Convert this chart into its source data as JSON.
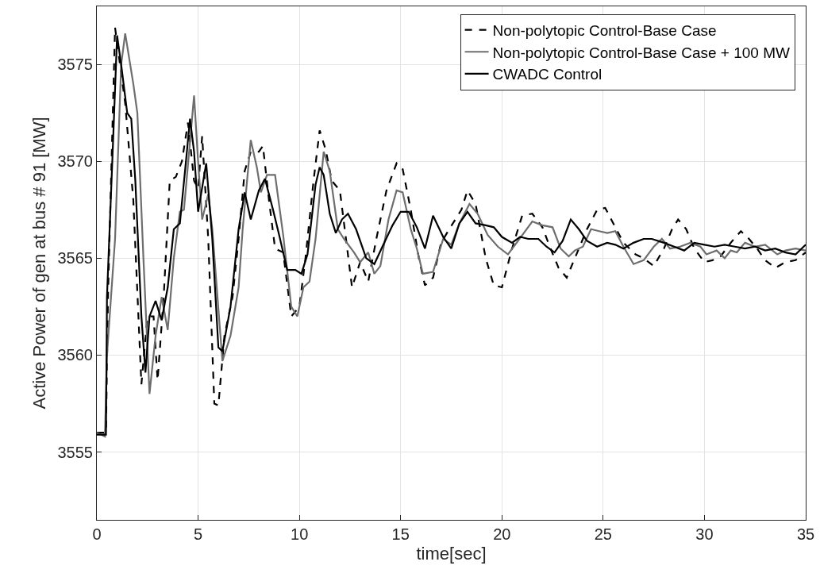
{
  "chart_data": {
    "type": "line",
    "xlabel": "time[sec]",
    "ylabel": "Active Power of gen at bus # 91 [MW]",
    "xlim": [
      0,
      35
    ],
    "xticks": [
      0,
      5,
      10,
      15,
      20,
      25,
      30,
      35
    ],
    "ylim": [
      3551.5,
      3578
    ],
    "yticks": [
      3555,
      3560,
      3565,
      3570,
      3575
    ],
    "grid": true,
    "legend": "top right",
    "series": [
      {
        "name": "Non-polytopic Control-Base Case",
        "color": "#000000",
        "line_style": "dashed",
        "x": [
          0,
          0.45,
          0.55,
          0.9,
          1.4,
          1.8,
          2.2,
          2.5,
          2.8,
          3.0,
          3.3,
          3.6,
          3.9,
          4.2,
          4.5,
          4.8,
          5.0,
          5.2,
          5.5,
          5.8,
          6.0,
          6.3,
          6.7,
          7.0,
          7.3,
          7.6,
          8.0,
          8.2,
          8.5,
          8.8,
          9.2,
          9.6,
          10.0,
          10.3,
          10.7,
          11.0,
          11.3,
          11.6,
          12.0,
          12.3,
          12.6,
          13.0,
          13.4,
          13.8,
          14.3,
          14.8,
          15.1,
          15.5,
          15.9,
          16.2,
          16.6,
          17.0,
          17.4,
          18.0,
          18.3,
          18.7,
          19.2,
          19.6,
          20.0,
          20.5,
          21.0,
          21.5,
          22.0,
          22.4,
          22.8,
          23.2,
          23.6,
          24.2,
          24.7,
          25.1,
          25.5,
          26.0,
          26.6,
          27.0,
          27.5,
          28.0,
          28.4,
          28.7,
          29.1,
          29.5,
          30.0,
          30.4,
          30.8,
          31.3,
          31.8,
          32.2,
          32.6,
          33.0,
          33.5,
          34.0,
          34.5,
          35
        ],
        "values": [
          3556,
          3556,
          3563,
          3576.9,
          3573,
          3568,
          3558.5,
          3562,
          3562,
          3558.7,
          3563,
          3569,
          3569.2,
          3570,
          3572,
          3569,
          3568.6,
          3571.3,
          3566,
          3557.5,
          3557.4,
          3561,
          3563,
          3566,
          3569.5,
          3570.5,
          3570.5,
          3570.8,
          3568,
          3565.5,
          3565.3,
          3562,
          3562.5,
          3565,
          3569,
          3571.6,
          3570.6,
          3569,
          3568.5,
          3566,
          3563.5,
          3564.8,
          3563.8,
          3566,
          3568.5,
          3569.9,
          3569.6,
          3567.5,
          3565,
          3563.6,
          3564,
          3565.8,
          3566.5,
          3567.5,
          3568.5,
          3567.8,
          3565,
          3563.6,
          3563.5,
          3565.5,
          3567.2,
          3567.3,
          3566.6,
          3565.5,
          3564.5,
          3564,
          3565,
          3566.5,
          3567.5,
          3567.6,
          3566.8,
          3565.8,
          3565.2,
          3565,
          3564.6,
          3565.5,
          3566.5,
          3567,
          3566.5,
          3565.5,
          3564.8,
          3564.9,
          3565.1,
          3565.8,
          3566.4,
          3566,
          3565.5,
          3564.9,
          3564.5,
          3564.8,
          3564.9,
          3565.3
        ]
      },
      {
        "name": "Non-polytopic Control-Base Case + 100 MW",
        "color": "#6e6e6e",
        "line_style": "solid",
        "x": [
          0,
          0.4,
          0.5,
          0.9,
          1.2,
          1.4,
          1.8,
          2.0,
          2.3,
          2.6,
          2.9,
          3.2,
          3.5,
          3.8,
          4.1,
          4.3,
          4.6,
          4.8,
          5.0,
          5.2,
          5.5,
          5.7,
          6.2,
          6.6,
          7.0,
          7.2,
          7.6,
          7.9,
          8.1,
          8.4,
          8.8,
          9.2,
          9.6,
          9.9,
          10.2,
          10.5,
          10.8,
          11.2,
          11.5,
          11.9,
          12.2,
          12.7,
          13.0,
          13.4,
          13.7,
          14.0,
          14.4,
          14.8,
          15.1,
          15.5,
          15.8,
          16.1,
          16.6,
          17.1,
          17.5,
          17.9,
          18.4,
          18.8,
          19.3,
          19.8,
          20.3,
          20.8,
          21.5,
          22.0,
          22.5,
          22.9,
          23.3,
          23.6,
          24.0,
          24.4,
          24.8,
          25.2,
          25.6,
          26.0,
          26.5,
          27.0,
          27.5,
          27.9,
          28.3,
          28.8,
          29.3,
          29.8,
          30.1,
          30.6,
          31.0,
          31.3,
          31.6,
          32.0,
          32.5,
          33.0,
          33.6,
          34.0,
          34.5,
          35
        ],
        "values": [
          3556,
          3555.8,
          3560,
          3566,
          3575,
          3576.6,
          3574,
          3572.5,
          3565,
          3558,
          3561,
          3563,
          3561.3,
          3565,
          3567.4,
          3567.5,
          3571,
          3573.4,
          3570,
          3567,
          3568.3,
          3566.5,
          3559.7,
          3561,
          3563.5,
          3566.5,
          3571.1,
          3569.7,
          3568.4,
          3569.3,
          3569.3,
          3566.2,
          3562.5,
          3562,
          3563.5,
          3563.8,
          3566,
          3570.5,
          3569.5,
          3566.5,
          3566,
          3565.3,
          3564.8,
          3565.3,
          3564.2,
          3564.6,
          3567,
          3568.5,
          3568.4,
          3566.5,
          3565.5,
          3564.2,
          3564.3,
          3566,
          3565.7,
          3566.8,
          3567.8,
          3567.3,
          3566.2,
          3565.6,
          3565.2,
          3565.9,
          3566.9,
          3566.7,
          3566.6,
          3565.5,
          3565.1,
          3565.4,
          3565.6,
          3566.5,
          3566.4,
          3566.3,
          3566.4,
          3565.6,
          3564.7,
          3564.9,
          3565.6,
          3566,
          3565.5,
          3565.6,
          3565.8,
          3565.6,
          3565.2,
          3565.4,
          3565,
          3565.4,
          3565.3,
          3565.8,
          3565.6,
          3565.7,
          3565.2,
          3565.4,
          3565.5,
          3565.4
        ]
      },
      {
        "name": "CWADC Control",
        "color": "#000000",
        "line_style": "solid",
        "x": [
          0,
          0.45,
          0.5,
          0.8,
          1.0,
          1.2,
          1.5,
          1.7,
          1.9,
          2.2,
          2.4,
          2.6,
          2.9,
          3.2,
          3.5,
          3.8,
          4.1,
          4.4,
          4.6,
          4.8,
          5.0,
          5.4,
          5.7,
          6.0,
          6.2,
          6.6,
          7.0,
          7.3,
          7.6,
          8.0,
          8.3,
          8.7,
          9.0,
          9.4,
          9.8,
          10.1,
          10.4,
          10.8,
          11.0,
          11.2,
          11.5,
          11.8,
          12.1,
          12.4,
          12.8,
          13.3,
          13.7,
          14.1,
          14.6,
          15.0,
          15.4,
          15.8,
          16.2,
          16.6,
          17.1,
          17.5,
          17.9,
          18.3,
          18.7,
          19.2,
          19.6,
          20.0,
          20.5,
          20.9,
          21.3,
          21.8,
          22.2,
          22.6,
          23.0,
          23.4,
          23.8,
          24.2,
          24.7,
          25.2,
          25.6,
          26.0,
          26.5,
          27.0,
          27.4,
          28.0,
          28.5,
          29.0,
          29.5,
          30.0,
          30.5,
          31.0,
          31.5,
          32.0,
          32.5,
          33.0,
          33.5,
          34.0,
          34.5,
          35
        ],
        "values": [
          3555.9,
          3555.9,
          3563,
          3571,
          3576.5,
          3575,
          3572.5,
          3572.2,
          3569,
          3562,
          3559.1,
          3562,
          3562.8,
          3561.8,
          3563.5,
          3566.5,
          3566.8,
          3570,
          3572.2,
          3570.5,
          3567.4,
          3569.9,
          3566,
          3560.4,
          3560.2,
          3562.5,
          3566.5,
          3568.4,
          3567,
          3568.5,
          3569.1,
          3567.5,
          3566.2,
          3564.4,
          3564.4,
          3564.2,
          3565.2,
          3568.8,
          3569.7,
          3569.3,
          3567.3,
          3566.3,
          3567,
          3567.3,
          3566.5,
          3565,
          3564.7,
          3565.6,
          3566.7,
          3567.4,
          3567.4,
          3566.6,
          3565.5,
          3567.2,
          3566.1,
          3565.5,
          3566.8,
          3567.4,
          3566.8,
          3566.7,
          3566.6,
          3566.1,
          3565.8,
          3566.1,
          3566,
          3566,
          3565.6,
          3565.3,
          3565.9,
          3567,
          3566.5,
          3565.9,
          3565.6,
          3565.8,
          3565.7,
          3565.5,
          3565.8,
          3566,
          3566,
          3565.8,
          3565.6,
          3565.4,
          3565.8,
          3565.7,
          3565.6,
          3565.7,
          3565.6,
          3565.5,
          3565.6,
          3565.4,
          3565.5,
          3565.3,
          3565.2,
          3565.7
        ]
      }
    ]
  }
}
